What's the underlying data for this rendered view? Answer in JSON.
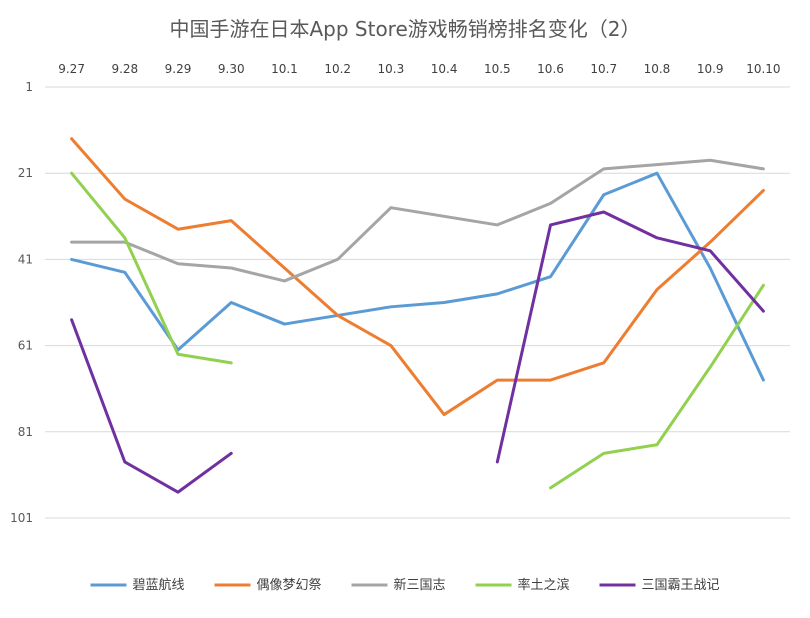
{
  "chart_data": {
    "type": "line",
    "title": "中国手游在日本App Store游戏畅销榜排名变化（2）",
    "xlabel": "",
    "ylabel": "",
    "categories": [
      "9.27",
      "9.28",
      "9.29",
      "9.30",
      "10.1",
      "10.2",
      "10.3",
      "10.4",
      "10.5",
      "10.6",
      "10.7",
      "10.8",
      "10.9",
      "10.10"
    ],
    "y_axis": {
      "reversed": true,
      "min": 1,
      "max": 101,
      "ticks": [
        1,
        21,
        41,
        61,
        81,
        101
      ]
    },
    "x_axis_position": "top",
    "grid": true,
    "legend": "bottom",
    "series": [
      {
        "name": "碧蓝航线",
        "color": "#5b9bd5",
        "values": [
          41,
          44,
          62,
          51,
          56,
          54,
          52,
          51,
          49,
          45,
          26,
          21,
          43,
          69
        ]
      },
      {
        "name": "偶像梦幻祭",
        "color": "#ed7d31",
        "values": [
          13,
          27,
          34,
          32,
          43,
          54,
          61,
          77,
          69,
          69,
          65,
          48,
          37,
          25
        ]
      },
      {
        "name": "新三国志",
        "color": "#a5a5a5",
        "values": [
          37,
          37,
          42,
          43,
          46,
          41,
          29,
          31,
          33,
          28,
          20,
          19,
          18,
          20
        ]
      },
      {
        "name": "率土之滨",
        "color": "#92d050",
        "values": [
          21,
          36,
          63,
          65,
          null,
          null,
          null,
          null,
          null,
          94,
          86,
          84,
          66,
          47
        ]
      },
      {
        "name": "三国霸王战记",
        "color": "#7030a0",
        "values": [
          55,
          88,
          95,
          86,
          null,
          null,
          null,
          null,
          88,
          33,
          30,
          36,
          39,
          53
        ]
      }
    ]
  }
}
